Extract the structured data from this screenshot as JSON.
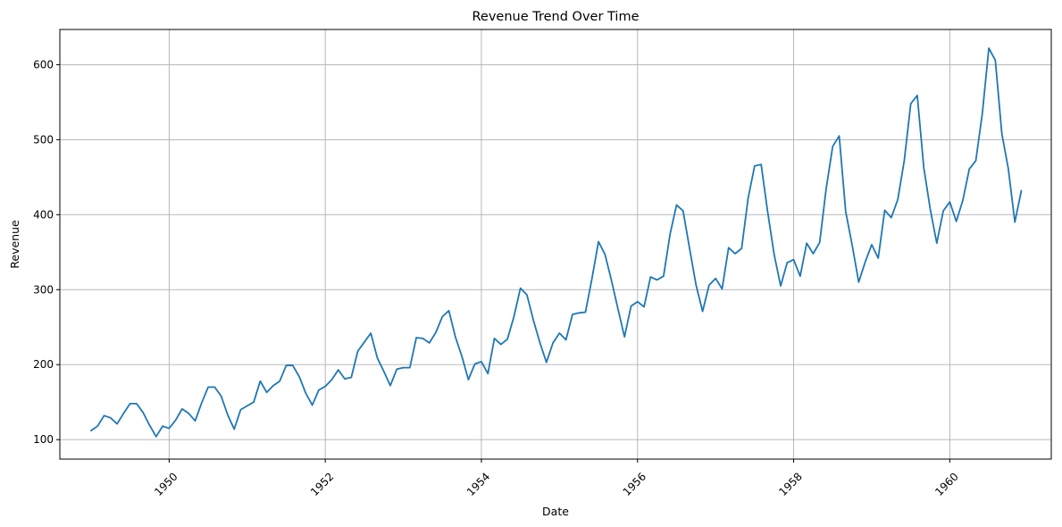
{
  "chart_data": {
    "type": "line",
    "title": "Revenue Trend Over Time",
    "xlabel": "Date",
    "ylabel": "Revenue",
    "xlim": [
      1948.6,
      1961.3
    ],
    "ylim": [
      74,
      647
    ],
    "x_ticks": [
      1950,
      1952,
      1954,
      1956,
      1958,
      1960
    ],
    "x_tick_labels": [
      "1950",
      "1952",
      "1954",
      "1956",
      "1958",
      "1960"
    ],
    "y_ticks": [
      100,
      200,
      300,
      400,
      500,
      600
    ],
    "y_tick_labels": [
      "100",
      "200",
      "300",
      "400",
      "500",
      "600"
    ],
    "x_tick_rotation_deg": 45,
    "grid": true,
    "legend": "none",
    "series": [
      {
        "color": "#1f77b4",
        "x_start": "1949-01",
        "frequency": "monthly",
        "values": [
          112,
          118,
          132,
          129,
          121,
          135,
          148,
          148,
          136,
          119,
          104,
          118,
          115,
          126,
          141,
          135,
          125,
          149,
          170,
          170,
          158,
          133,
          114,
          140,
          145,
          150,
          178,
          163,
          172,
          178,
          199,
          199,
          184,
          162,
          146,
          166,
          171,
          180,
          193,
          181,
          183,
          218,
          230,
          242,
          209,
          191,
          172,
          194,
          196,
          196,
          236,
          235,
          229,
          243,
          264,
          272,
          237,
          211,
          180,
          201,
          204,
          188,
          235,
          227,
          234,
          264,
          302,
          293,
          259,
          229,
          203,
          229,
          242,
          233,
          267,
          269,
          270,
          315,
          364,
          347,
          312,
          274,
          237,
          278,
          284,
          277,
          317,
          313,
          318,
          374,
          413,
          405,
          355,
          306,
          271,
          306,
          315,
          301,
          356,
          348,
          355,
          422,
          465,
          467,
          404,
          347,
          305,
          336,
          340,
          318,
          362,
          348,
          363,
          435,
          491,
          505,
          404,
          359,
          310,
          337,
          360,
          342,
          406,
          396,
          420,
          472,
          548,
          559,
          463,
          407,
          362,
          405,
          417,
          391,
          419,
          461,
          472,
          535,
          622,
          606,
          508,
          461,
          390,
          432
        ]
      }
    ]
  }
}
